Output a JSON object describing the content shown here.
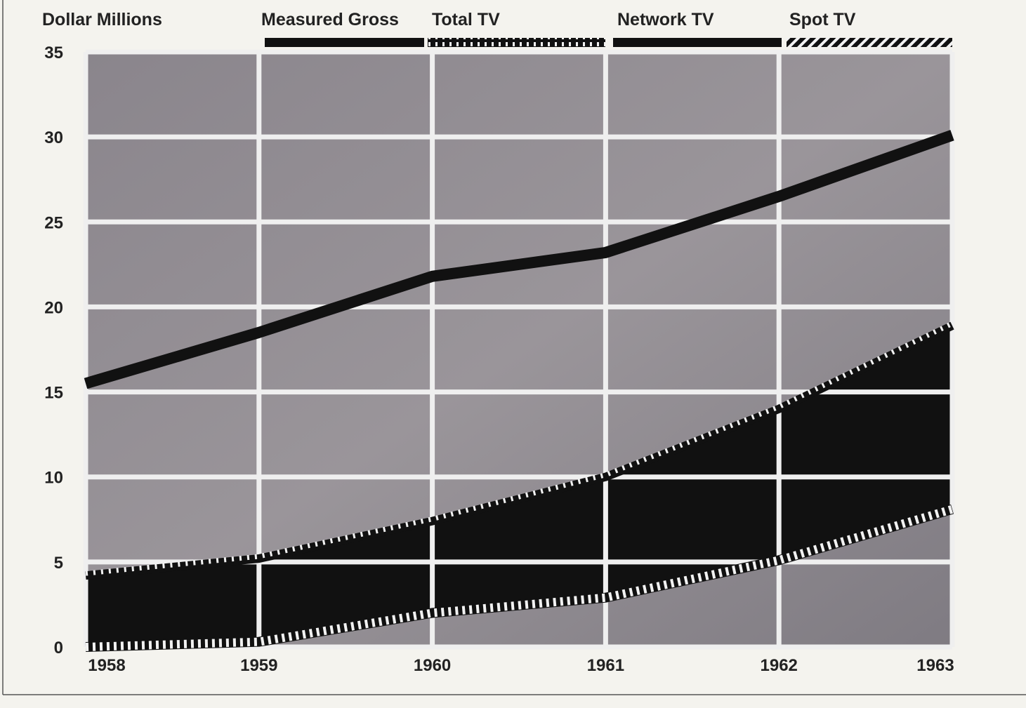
{
  "chart_data": {
    "type": "line",
    "ylabel": "Dollar Millions",
    "x": [
      "1958",
      "1959",
      "1960",
      "1961",
      "1962",
      "1963"
    ],
    "ylim": [
      0,
      35
    ],
    "yticks": [
      0,
      5,
      10,
      15,
      20,
      25,
      30,
      35
    ],
    "grid": true,
    "legend_position": "top",
    "series": [
      {
        "name": "Measured Gross",
        "values": [
          15.5,
          18.5,
          21.8,
          23.2,
          26.5,
          30.1
        ],
        "style": "solid-line",
        "color": "#111111"
      },
      {
        "name": "Total TV",
        "values": [
          4.2,
          5.2,
          7.4,
          10.0,
          14.0,
          18.9
        ],
        "style": "dashed-edge-fill",
        "color": "#111111"
      },
      {
        "name": "Network TV",
        "values": [
          4.2,
          5.2,
          7.4,
          10.0,
          14.0,
          18.9
        ],
        "style": "solid-fill",
        "color": "#111111"
      },
      {
        "name": "Spot TV",
        "values": [
          0.0,
          0.3,
          2.0,
          2.9,
          5.1,
          8.1
        ],
        "style": "hatched-line",
        "color": "#111111"
      }
    ]
  },
  "colors": {
    "background": "#f4f3ee",
    "plot_area": "#8f8a90",
    "grid": "#f2f2f2",
    "ink": "#111111"
  }
}
